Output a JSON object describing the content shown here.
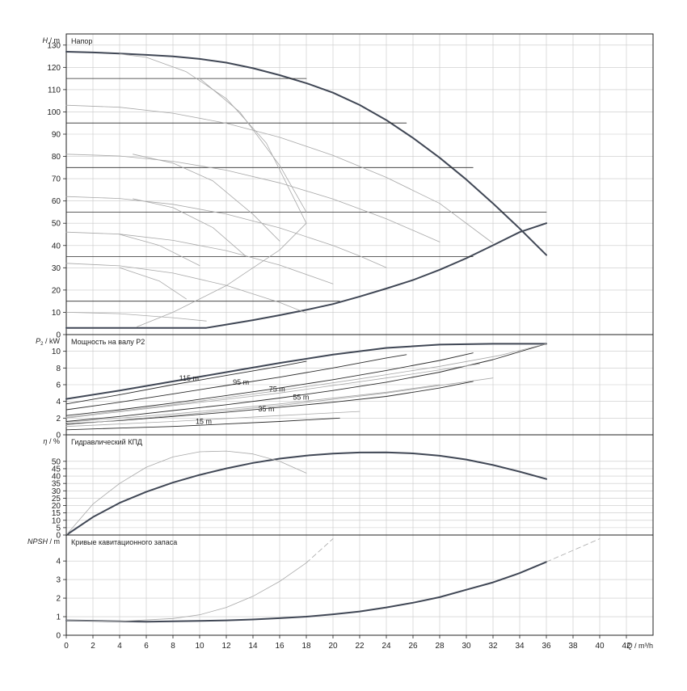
{
  "colors": {
    "envelope": "#404755",
    "thin": "#a8a8a8",
    "lines": "#2b2b2b",
    "grid": "#c8c8c8"
  },
  "chart_data": [
    {
      "type": "line",
      "panel": "head",
      "title": "Напор",
      "ylabel_sym": "H",
      "ylabel_unit": " / m",
      "ylim": [
        0,
        135
      ],
      "yticks": [
        0,
        10,
        20,
        30,
        40,
        50,
        60,
        70,
        80,
        90,
        100,
        110,
        120,
        130
      ],
      "xlim": [
        0,
        44
      ],
      "series": [
        {
          "role": "envelope",
          "x": [
            0,
            2,
            4,
            6,
            8,
            10,
            12,
            14,
            16,
            18,
            20,
            22,
            24,
            26,
            28,
            30,
            32,
            34,
            36
          ],
          "y": [
            127,
            126.7,
            126.2,
            125.6,
            124.9,
            123.8,
            122.1,
            119.6,
            116.5,
            112.9,
            108.6,
            103.1,
            96.3,
            88.3,
            79.4,
            69.6,
            58.9,
            47.6,
            35.7
          ]
        },
        {
          "role": "envelope",
          "x": [
            0,
            2,
            4,
            6,
            8,
            10.5,
            12,
            14,
            16,
            18,
            20,
            22,
            24,
            26,
            28,
            30,
            32,
            34,
            36
          ],
          "y": [
            3,
            3,
            3,
            3,
            3,
            3,
            4.5,
            6.5,
            8.7,
            11.1,
            13.7,
            17.1,
            20.7,
            24.5,
            29.1,
            34.3,
            40.1,
            46,
            50
          ]
        },
        {
          "role": "level",
          "x": [
            0,
            18
          ],
          "y": [
            115,
            115
          ]
        },
        {
          "role": "level",
          "x": [
            0,
            25.5
          ],
          "y": [
            95,
            95
          ]
        },
        {
          "role": "level",
          "x": [
            0,
            30.5
          ],
          "y": [
            75,
            75
          ]
        },
        {
          "role": "level",
          "x": [
            0,
            36
          ],
          "y": [
            55,
            55
          ]
        },
        {
          "role": "level",
          "x": [
            0,
            30.5
          ],
          "y": [
            35,
            35
          ]
        },
        {
          "role": "level",
          "x": [
            0,
            20.5
          ],
          "y": [
            15,
            15
          ]
        },
        {
          "role": "curve",
          "x": [
            0,
            4,
            8,
            12,
            16,
            20,
            24,
            28,
            32
          ],
          "y": [
            103,
            102.1,
            99.4,
            94.9,
            88.6,
            80.5,
            70.6,
            58.9,
            41
          ]
        },
        {
          "role": "curve",
          "x": [
            0,
            4,
            8,
            12,
            16,
            20,
            24,
            28
          ],
          "y": [
            81,
            80.2,
            77.8,
            73.8,
            68.1,
            60.9,
            52,
            41.6
          ]
        },
        {
          "role": "curve",
          "x": [
            0,
            4,
            8,
            12,
            16,
            20,
            22,
            24
          ],
          "y": [
            62,
            61.1,
            58.5,
            54.1,
            47.9,
            40,
            35.3,
            30.1
          ]
        },
        {
          "role": "curve",
          "x": [
            0,
            4,
            8,
            12,
            16,
            20
          ],
          "y": [
            46,
            45.1,
            42.3,
            37.7,
            31.2,
            22.8
          ]
        },
        {
          "role": "curve",
          "x": [
            0,
            4,
            8,
            12,
            16,
            18
          ],
          "y": [
            32,
            30.9,
            27.6,
            22.1,
            14.4,
            9.7
          ]
        },
        {
          "role": "curve",
          "x": [
            0,
            4,
            8,
            10.5
          ],
          "y": [
            10,
            9.4,
            7.6,
            6.1
          ]
        },
        {
          "role": "curve",
          "x": [
            4,
            6,
            9,
            12,
            15,
            18
          ],
          "y": [
            126,
            124.5,
            118,
            106,
            86,
            50
          ]
        },
        {
          "role": "curve",
          "x": [
            10,
            13,
            16,
            18
          ],
          "y": [
            115,
            100,
            76,
            55
          ]
        },
        {
          "role": "curve",
          "x": [
            5,
            8,
            11,
            14,
            16
          ],
          "y": [
            81,
            77,
            69,
            54,
            42
          ]
        },
        {
          "role": "curve",
          "x": [
            5,
            8,
            11,
            13.5
          ],
          "y": [
            61,
            57,
            48,
            35
          ]
        },
        {
          "role": "curve",
          "x": [
            4,
            7,
            10
          ],
          "y": [
            45,
            40,
            31
          ]
        },
        {
          "role": "curve",
          "x": [
            4,
            7,
            9
          ],
          "y": [
            30,
            24,
            16
          ]
        },
        {
          "role": "curve",
          "x": [
            5.3,
            8,
            12,
            16,
            18
          ],
          "y": [
            3.5,
            10,
            22,
            38,
            50
          ]
        }
      ]
    },
    {
      "type": "line",
      "panel": "power",
      "title": "Мощность на валу P2",
      "ylabel_sym": "P",
      "ylabel_sub": "2",
      "ylabel_unit": " / kW",
      "ylim": [
        0,
        12
      ],
      "yticks": [
        0,
        2,
        4,
        6,
        8,
        10
      ],
      "xlim": [
        0,
        44
      ],
      "labels": [
        {
          "text": "115 m",
          "x": 9.2,
          "y": 6.5
        },
        {
          "text": "95 m",
          "x": 13.1,
          "y": 6.0
        },
        {
          "text": "75 m",
          "x": 15.8,
          "y": 5.2
        },
        {
          "text": "55 m",
          "x": 17.6,
          "y": 4.2
        },
        {
          "text": "35 m",
          "x": 15.0,
          "y": 2.8
        },
        {
          "text": "15 m",
          "x": 10.3,
          "y": 1.3
        }
      ],
      "series": [
        {
          "role": "envelope",
          "x": [
            0,
            4,
            8,
            12,
            16,
            20,
            24,
            28,
            32,
            36
          ],
          "y": [
            4.3,
            5.3,
            6.4,
            7.5,
            8.6,
            9.6,
            10.4,
            10.8,
            10.9,
            10.9
          ]
        },
        {
          "role": "line",
          "x": [
            0,
            4,
            8,
            12,
            16,
            18
          ],
          "y": [
            3.7,
            4.8,
            6,
            7.1,
            8.2,
            8.8
          ]
        },
        {
          "role": "line",
          "x": [
            0,
            4,
            8,
            12,
            16,
            20,
            24,
            25.5
          ],
          "y": [
            3.0,
            3.9,
            4.9,
            5.9,
            6.9,
            8.0,
            9.2,
            9.6
          ]
        },
        {
          "role": "line",
          "x": [
            0,
            4,
            8,
            12,
            16,
            20,
            24,
            28,
            30.5
          ],
          "y": [
            2.3,
            3.0,
            3.8,
            4.7,
            5.6,
            6.6,
            7.7,
            8.9,
            9.8
          ]
        },
        {
          "role": "line",
          "x": [
            0,
            4,
            8,
            12,
            16,
            20,
            24,
            28,
            32,
            36
          ],
          "y": [
            1.6,
            2.2,
            2.9,
            3.6,
            4.4,
            5.3,
            6.3,
            7.5,
            9.0,
            10.9
          ]
        },
        {
          "role": "line",
          "x": [
            0,
            4,
            8,
            12,
            16,
            20,
            24,
            28,
            30.5
          ],
          "y": [
            1.3,
            1.7,
            2.2,
            2.7,
            3.3,
            3.9,
            4.6,
            5.6,
            6.4
          ]
        },
        {
          "role": "line",
          "x": [
            0,
            4,
            8,
            12,
            16,
            20.5
          ],
          "y": [
            0.6,
            0.8,
            1.0,
            1.3,
            1.6,
            2.0
          ]
        },
        {
          "role": "thin",
          "x": [
            0,
            8,
            16,
            22,
            28,
            32.5,
            36
          ],
          "y": [
            2.1,
            3.6,
            5.3,
            6.7,
            8.2,
            9.5,
            10.9
          ]
        },
        {
          "role": "thin",
          "x": [
            0,
            8,
            16,
            24,
            31
          ],
          "y": [
            2.0,
            3.5,
            5.0,
            6.8,
            8.5
          ]
        },
        {
          "role": "thin",
          "x": [
            0,
            8,
            16,
            24,
            28
          ],
          "y": [
            1.5,
            2.5,
            3.7,
            5.1,
            6.0
          ]
        },
        {
          "role": "thin",
          "x": [
            0,
            8,
            16,
            24,
            32
          ],
          "y": [
            1.2,
            2.3,
            3.5,
            5.0,
            6.8
          ]
        },
        {
          "role": "thin",
          "x": [
            0,
            8,
            16,
            22
          ],
          "y": [
            1.0,
            1.6,
            2.3,
            2.8
          ]
        }
      ]
    },
    {
      "type": "line",
      "panel": "efficiency",
      "title": "Гидравлический КПД",
      "ylabel_sym": "η",
      "ylabel_unit": " / %",
      "ylim": [
        0,
        68
      ],
      "yticks": [
        0,
        5,
        10,
        15,
        20,
        25,
        30,
        35,
        40,
        45,
        50
      ],
      "xlim": [
        0,
        44
      ],
      "series": [
        {
          "role": "envelope",
          "x": [
            0,
            2,
            4,
            6,
            8,
            10,
            12,
            14,
            16,
            18,
            20,
            22,
            24,
            26,
            28,
            30,
            32,
            34,
            36
          ],
          "y": [
            0,
            12.2,
            21.8,
            29.3,
            35.6,
            40.8,
            45.2,
            48.9,
            51.8,
            53.9,
            55.3,
            56,
            56.1,
            55.4,
            53.8,
            51.2,
            47.5,
            43,
            38
          ]
        },
        {
          "role": "thin",
          "x": [
            0,
            2,
            4,
            6,
            8,
            10,
            12,
            14,
            16,
            18
          ],
          "y": [
            0,
            21,
            35,
            46,
            53,
            56.5,
            57,
            55,
            50,
            42
          ]
        }
      ]
    },
    {
      "type": "line",
      "panel": "npsh",
      "title": "Кривые кавитационного запаса",
      "ylabel_sym": "NPSH",
      "ylabel_unit": " / m",
      "ylim": [
        0,
        5.4
      ],
      "yticks": [
        0,
        1,
        2,
        3,
        4
      ],
      "xlim": [
        0,
        44
      ],
      "series": [
        {
          "role": "envelope",
          "x": [
            0,
            2,
            4,
            6,
            8,
            10,
            12,
            14,
            16,
            18,
            20,
            22,
            24,
            26,
            28,
            30,
            32,
            34,
            36
          ],
          "y": [
            0.8,
            0.78,
            0.75,
            0.73,
            0.75,
            0.77,
            0.8,
            0.85,
            0.92,
            1.0,
            1.13,
            1.28,
            1.5,
            1.75,
            2.05,
            2.45,
            2.85,
            3.35,
            3.95
          ]
        },
        {
          "role": "thin",
          "x": [
            0,
            4,
            8,
            10,
            12,
            14,
            16,
            18
          ],
          "y": [
            0.8,
            0.75,
            0.9,
            1.1,
            1.5,
            2.1,
            2.9,
            3.9
          ]
        },
        {
          "role": "dash",
          "x": [
            18,
            20
          ],
          "y": [
            3.9,
            5.2
          ]
        },
        {
          "role": "dash",
          "x": [
            36,
            40
          ],
          "y": [
            3.95,
            5.2
          ]
        }
      ]
    }
  ],
  "x_axis": {
    "symbol": "Q",
    "unit": " / m³/h",
    "ticks": [
      0,
      2,
      4,
      6,
      8,
      10,
      12,
      14,
      16,
      18,
      20,
      22,
      24,
      26,
      28,
      30,
      32,
      34,
      36,
      38,
      40,
      42
    ]
  }
}
